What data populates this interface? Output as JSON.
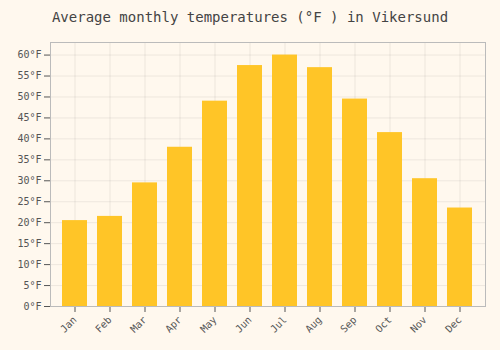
{
  "chart_data": {
    "type": "bar",
    "title": "Average monthly temperatures (°F ) in Vikersund",
    "categories": [
      "Jan",
      "Feb",
      "Mar",
      "Apr",
      "May",
      "Jun",
      "Jul",
      "Aug",
      "Sep",
      "Oct",
      "Nov",
      "Dec"
    ],
    "values": [
      20.5,
      21.5,
      29.5,
      38.0,
      49.0,
      57.5,
      60.0,
      57.0,
      49.5,
      41.5,
      30.5,
      23.5
    ],
    "color": "#FFC527",
    "ylim": [
      0,
      63
    ],
    "yticks": [
      {
        "value": 0,
        "label": "0°F"
      },
      {
        "value": 5,
        "label": "5°F"
      },
      {
        "value": 10,
        "label": "10°F"
      },
      {
        "value": 15,
        "label": "15°F"
      },
      {
        "value": 20,
        "label": "20°F"
      },
      {
        "value": 25,
        "label": "25°F"
      },
      {
        "value": 30,
        "label": "30°F"
      },
      {
        "value": 35,
        "label": "35°F"
      },
      {
        "value": 40,
        "label": "40°F"
      },
      {
        "value": 45,
        "label": "45°F"
      },
      {
        "value": 50,
        "label": "50°F"
      },
      {
        "value": 55,
        "label": "55°F"
      },
      {
        "value": 60,
        "label": "60°F"
      }
    ],
    "grid": true
  }
}
